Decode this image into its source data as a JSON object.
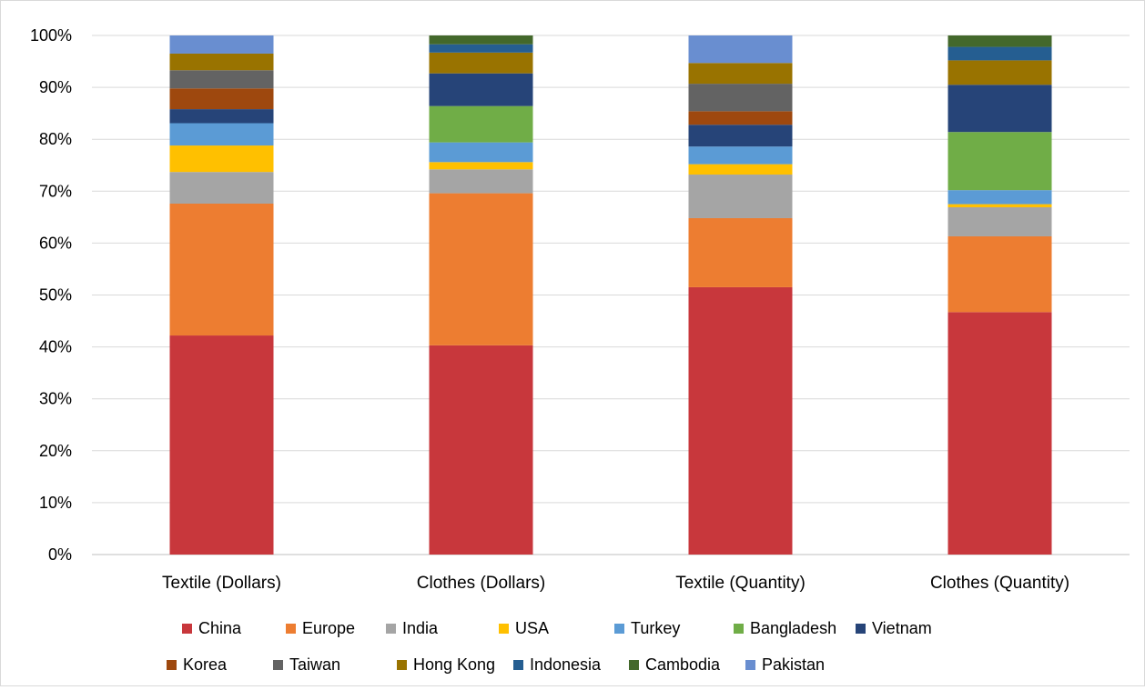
{
  "chart_data": {
    "type": "bar",
    "stacked": true,
    "percent_stacked": true,
    "categories": [
      "Textile (Dollars)",
      "Clothes (Dollars)",
      "Textile (Quantity)",
      "Clothes (Quantity)"
    ],
    "series": [
      {
        "name": "China",
        "color": "#C8373C",
        "values": [
          42.2,
          40.3,
          51.5,
          46.7
        ]
      },
      {
        "name": "Europe",
        "color": "#ED7D31",
        "values": [
          25.4,
          29.3,
          13.3,
          14.6
        ]
      },
      {
        "name": "India",
        "color": "#A5A5A5",
        "values": [
          6.1,
          4.6,
          8.4,
          5.6
        ]
      },
      {
        "name": "USA",
        "color": "#FFC000",
        "values": [
          5.1,
          1.4,
          2.0,
          0.6
        ]
      },
      {
        "name": "Turkey",
        "color": "#5B9BD5",
        "values": [
          4.3,
          3.8,
          3.4,
          2.7
        ]
      },
      {
        "name": "Bangladesh",
        "color": "#70AD47",
        "values": [
          0.0,
          7.0,
          0.0,
          11.2
        ]
      },
      {
        "name": "Vietnam",
        "color": "#264478",
        "values": [
          2.7,
          6.3,
          4.2,
          9.1
        ]
      },
      {
        "name": "Korea",
        "color": "#9E480E",
        "values": [
          4.0,
          0.0,
          2.6,
          0.0
        ]
      },
      {
        "name": "Taiwan",
        "color": "#636363",
        "values": [
          3.5,
          0.0,
          5.3,
          0.0
        ]
      },
      {
        "name": "Hong Kong",
        "color": "#997300",
        "values": [
          3.2,
          4.0,
          4.0,
          4.7
        ]
      },
      {
        "name": "Indonesia",
        "color": "#255E91",
        "values": [
          0.0,
          1.6,
          0.0,
          2.6
        ]
      },
      {
        "name": "Cambodia",
        "color": "#43682B",
        "values": [
          0.0,
          1.7,
          0.0,
          2.2
        ]
      },
      {
        "name": "Pakistan",
        "color": "#698ED0",
        "values": [
          3.5,
          0.0,
          5.3,
          0.0
        ]
      }
    ],
    "title": "",
    "xlabel": "",
    "ylabel": "",
    "ylim": [
      0,
      100
    ],
    "yticks": [
      "0%",
      "10%",
      "20%",
      "30%",
      "40%",
      "50%",
      "60%",
      "70%",
      "80%",
      "90%",
      "100%"
    ],
    "grid": true,
    "legend_position": "bottom"
  }
}
